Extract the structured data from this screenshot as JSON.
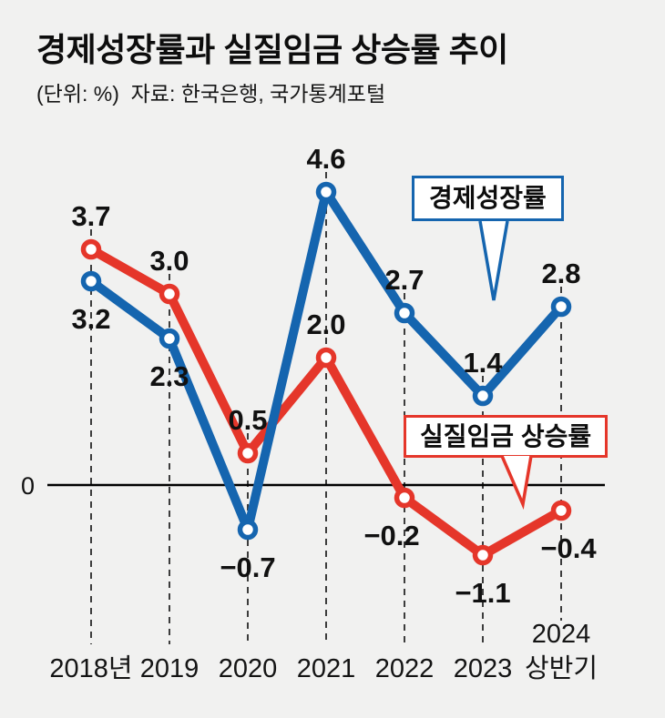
{
  "header": {
    "title": "경제성장률과 실질임금 상승률 추이",
    "subtitle": "(단위: %)  자료: 한국은행, 국가통계포털"
  },
  "chart_data": {
    "type": "line",
    "title": "경제성장률과 실질임금 상승률 추이",
    "unit_label": "(단위: %)",
    "source_label": "자료: 한국은행, 국가통계포털",
    "categories": [
      "2018년",
      "2019",
      "2020",
      "2021",
      "2022",
      "2023",
      "2024 상반기"
    ],
    "series": [
      {
        "name": "경제성장률",
        "color": "#1565af",
        "values": [
          3.2,
          2.3,
          -0.7,
          4.6,
          2.7,
          1.4,
          2.8
        ],
        "label_side": [
          "below",
          "below",
          "below",
          "above",
          "above",
          "above",
          "above"
        ]
      },
      {
        "name": "실질임금 상승률",
        "color": "#e5362a",
        "values": [
          3.7,
          3.0,
          0.5,
          2.0,
          -0.2,
          -1.1,
          -0.4
        ],
        "label_side": [
          "above",
          "above",
          "above",
          "above",
          "below",
          "below",
          "below"
        ]
      }
    ],
    "baseline_label": "0",
    "ylim": [
      -1.5,
      5.0
    ],
    "grid": "dashed-vertical-gridlines",
    "legend_position": "inline-callout-boxes"
  }
}
